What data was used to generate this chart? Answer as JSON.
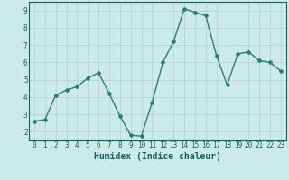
{
  "x": [
    0,
    1,
    2,
    3,
    4,
    5,
    6,
    7,
    8,
    9,
    10,
    11,
    12,
    13,
    14,
    15,
    16,
    17,
    18,
    19,
    20,
    21,
    22,
    23
  ],
  "y": [
    2.6,
    2.7,
    4.1,
    4.4,
    4.6,
    5.1,
    5.4,
    4.2,
    2.9,
    1.8,
    1.75,
    3.7,
    6.0,
    7.2,
    9.1,
    8.9,
    8.7,
    6.4,
    4.7,
    6.5,
    6.6,
    6.1,
    6.0,
    5.5
  ],
  "line_color": "#2d7d6e",
  "bg_color": "#cceae8",
  "grid_color": "#b8d4d2",
  "xlabel": "Humidex (Indice chaleur)",
  "xlim": [
    -0.5,
    23.5
  ],
  "ylim": [
    1.5,
    9.5
  ],
  "yticks": [
    2,
    3,
    4,
    5,
    6,
    7,
    8,
    9
  ],
  "xticks": [
    0,
    1,
    2,
    3,
    4,
    5,
    6,
    7,
    8,
    9,
    10,
    11,
    12,
    13,
    14,
    15,
    16,
    17,
    18,
    19,
    20,
    21,
    22,
    23
  ],
  "marker": "D",
  "marker_size": 2.0,
  "line_width": 1.0,
  "font_color": "#1a5f5f",
  "tick_fontsize": 5.5,
  "xlabel_fontsize": 7.0
}
